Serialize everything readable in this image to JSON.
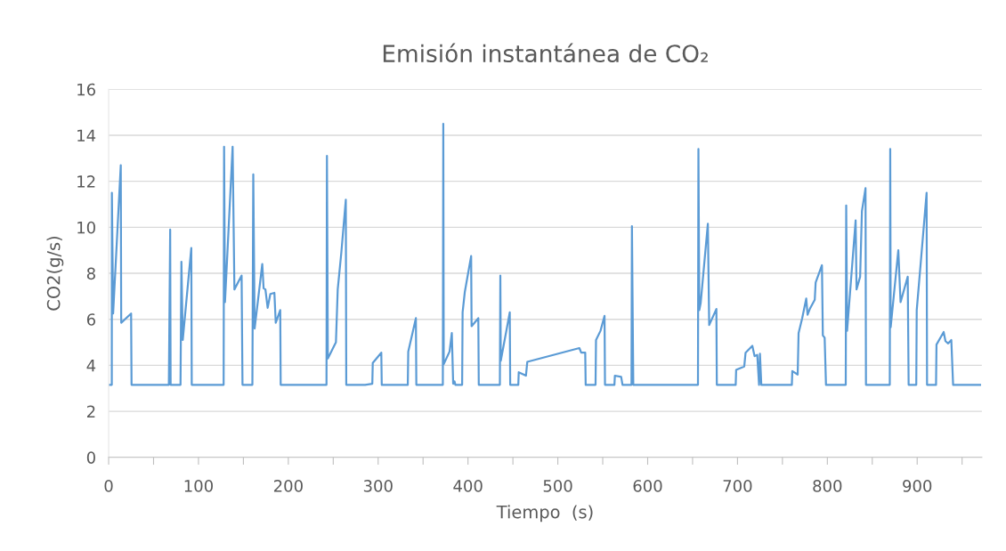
{
  "chart_data": {
    "type": "line",
    "title": "Emisión instantánea de CO₂",
    "xlabel": "Tiempo  (s)",
    "ylabel": "CO2(g/s)",
    "x": [
      0,
      3.5,
      3.6,
      5,
      13.5,
      14,
      25,
      25.5,
      67,
      68.5,
      69,
      80,
      81,
      82.5,
      92,
      92.5,
      128,
      128.5,
      129.5,
      138,
      140,
      148,
      149,
      160,
      161,
      162.5,
      171,
      172.5,
      174.5,
      177,
      180,
      184.5,
      186,
      191,
      191.5,
      242.5,
      243,
      244,
      253,
      255,
      259,
      264,
      264.5,
      285.5,
      293.5,
      294,
      303.5,
      304,
      333,
      333.5,
      342,
      342.5,
      372,
      372.5,
      373,
      379.5,
      382,
      383.5,
      385,
      386,
      393.5,
      394,
      396.5,
      403.5,
      404,
      411.5,
      412,
      435.5,
      436,
      436.5,
      446.5,
      447,
      456,
      456.5,
      464.5,
      466,
      524,
      526,
      530.5,
      531,
      542,
      542.5,
      547.5,
      552,
      552.5,
      563,
      563.5,
      570.5,
      572,
      582,
      582.5,
      584,
      656,
      656.5,
      657.5,
      659,
      667,
      668.5,
      676.5,
      677,
      698,
      698.5,
      707.5,
      709,
      716.5,
      719,
      722,
      724,
      725,
      726.5,
      760.5,
      761,
      767,
      768,
      772,
      776.5,
      778,
      780.5,
      786,
      787,
      794,
      795,
      797,
      798.5,
      820.5,
      821,
      822,
      831.5,
      832.5,
      836.5,
      838.5,
      842.5,
      843,
      869.5,
      870,
      870.5,
      879,
      881.5,
      889.5,
      890.5,
      899,
      899.5,
      904.5,
      910.5,
      911,
      921,
      921.5,
      929.5,
      931.5,
      934.5,
      938,
      940,
      970
    ],
    "series": [
      {
        "color": "#5b9bd5",
        "values": [
          3.15,
          3.15,
          11.5,
          6.25,
          12.7,
          5.85,
          6.25,
          3.15,
          3.15,
          9.9,
          3.15,
          3.15,
          8.5,
          5.1,
          9.1,
          3.15,
          3.15,
          13.5,
          6.75,
          13.5,
          7.3,
          7.9,
          3.15,
          3.15,
          12.3,
          5.6,
          8.4,
          7.35,
          7.3,
          6.5,
          7.1,
          7.15,
          5.85,
          6.4,
          3.15,
          3.15,
          13.1,
          4.3,
          5.0,
          7.3,
          8.9,
          11.2,
          3.15,
          3.15,
          3.2,
          4.1,
          4.55,
          3.15,
          3.15,
          4.6,
          6.05,
          3.15,
          3.15,
          14.5,
          4.05,
          4.6,
          5.4,
          3.2,
          3.3,
          3.15,
          3.15,
          6.3,
          7.2,
          8.75,
          5.7,
          6.05,
          3.15,
          3.15,
          7.9,
          4.2,
          6.3,
          3.15,
          3.15,
          3.7,
          3.55,
          4.15,
          4.75,
          4.55,
          4.55,
          3.15,
          3.15,
          5.1,
          5.5,
          6.15,
          3.15,
          3.15,
          3.55,
          3.5,
          3.15,
          3.15,
          10.05,
          3.15,
          3.15,
          13.4,
          6.4,
          6.7,
          10.15,
          5.75,
          6.45,
          3.15,
          3.15,
          3.8,
          3.95,
          4.55,
          4.85,
          4.4,
          4.45,
          3.15,
          4.5,
          3.15,
          3.15,
          3.75,
          3.6,
          5.4,
          6.05,
          6.9,
          6.2,
          6.45,
          6.85,
          7.6,
          8.35,
          5.3,
          5.2,
          3.15,
          3.15,
          10.95,
          5.5,
          10.3,
          7.3,
          7.85,
          10.7,
          11.7,
          3.15,
          3.15,
          13.4,
          5.65,
          9.0,
          6.75,
          7.85,
          3.15,
          3.15,
          6.4,
          8.7,
          11.5,
          3.15,
          3.15,
          4.9,
          5.45,
          5.05,
          4.95,
          5.1,
          3.15,
          3.15
        ]
      }
    ],
    "xlim": [
      0,
      972
    ],
    "xticks": [
      0,
      {
        "value": 50,
        "label": null
      },
      100,
      {
        "value": 150,
        "label": null
      },
      200,
      {
        "value": 250,
        "label": null
      },
      300,
      {
        "value": 350,
        "label": null
      },
      400,
      {
        "value": 450,
        "label": null
      },
      500,
      {
        "value": 550,
        "label": null
      },
      600,
      {
        "value": 650,
        "label": null
      },
      700,
      {
        "value": 750,
        "label": null
      },
      800,
      {
        "value": 850,
        "label": null
      },
      900,
      {
        "value": 950,
        "label": null
      }
    ],
    "ylim": [
      0,
      16
    ],
    "yticks": [
      0,
      2,
      4,
      6,
      8,
      10,
      12,
      14,
      16
    ],
    "grid": "y",
    "marker": "none",
    "line_style": "solid"
  }
}
